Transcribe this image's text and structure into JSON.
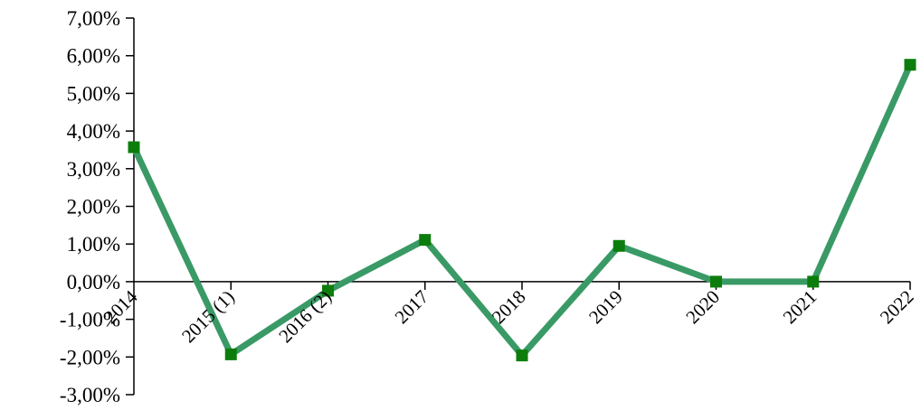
{
  "chart_data": {
    "type": "line",
    "title": "",
    "xlabel": "",
    "ylabel": "",
    "categories": [
      "2014",
      "2015 (1)",
      "2016 (2)",
      "2017",
      "2018",
      "2019",
      "2020",
      "2021",
      "2022"
    ],
    "series": [
      {
        "values": [
          3.57,
          -1.93,
          -0.24,
          1.11,
          -1.96,
          0.95,
          0.0,
          0.0,
          5.76
        ]
      }
    ],
    "ylim": [
      -3,
      7
    ],
    "y_ticks": [
      7,
      6,
      5,
      4,
      3,
      2,
      1,
      0,
      -1,
      -2,
      -3
    ],
    "y_tick_labels": [
      "7,00%",
      "6,00%",
      "5,00%",
      "4,00%",
      "3,00%",
      "2,00%",
      "1,00%",
      "0,00%",
      "-1,00%",
      "-2,00%",
      "-3,00%"
    ],
    "grid": false,
    "legend": "none",
    "colors": {
      "line": "#3a9a66",
      "marker": "#0c7d0c"
    }
  }
}
